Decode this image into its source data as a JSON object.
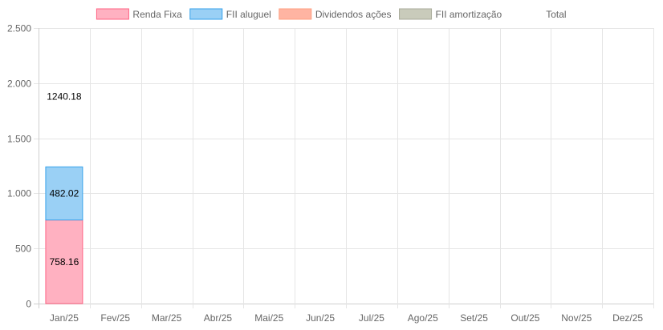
{
  "chart_data": {
    "type": "bar",
    "stacked": true,
    "categories": [
      "Jan/25",
      "Fev/25",
      "Mar/25",
      "Abr/25",
      "Mai/25",
      "Jun/25",
      "Jul/25",
      "Ago/25",
      "Set/25",
      "Out/25",
      "Nov/25",
      "Dez/25"
    ],
    "series": [
      {
        "name": "Renda Fixa",
        "color": "#ffb1c1",
        "border": "#ff6384",
        "values": [
          758.16,
          0,
          0,
          0,
          0,
          0,
          0,
          0,
          0,
          0,
          0,
          0
        ]
      },
      {
        "name": "FII aluguel",
        "color": "#9ad0f5",
        "border": "#36a2eb",
        "values": [
          482.02,
          0,
          0,
          0,
          0,
          0,
          0,
          0,
          0,
          0,
          0,
          0
        ]
      },
      {
        "name": "Dividendos ações",
        "color": "#ffb4a2",
        "border": "#ff9f80",
        "values": [
          0,
          0,
          0,
          0,
          0,
          0,
          0,
          0,
          0,
          0,
          0,
          0
        ]
      },
      {
        "name": "FII amortização",
        "color": "#c9cbbb",
        "border": "#a9ab9b",
        "values": [
          0,
          0,
          0,
          0,
          0,
          0,
          0,
          0,
          0,
          0,
          0,
          0
        ]
      }
    ],
    "total": {
      "name": "Total",
      "values": [
        1240.18,
        0,
        0,
        0,
        0,
        0,
        0,
        0,
        0,
        0,
        0,
        0
      ]
    },
    "data_labels": {
      "Renda Fixa": [
        "758.16"
      ],
      "FII aluguel": [
        "482.02"
      ],
      "Total": [
        "1240.18"
      ]
    },
    "ylim": [
      0,
      2500
    ],
    "yticks": [
      0,
      500,
      1000,
      1500,
      2000,
      2500
    ],
    "ytick_labels": [
      "0",
      "500",
      "1.000",
      "1.500",
      "2.000",
      "2.500"
    ],
    "grid": true,
    "legend_position": "top"
  }
}
